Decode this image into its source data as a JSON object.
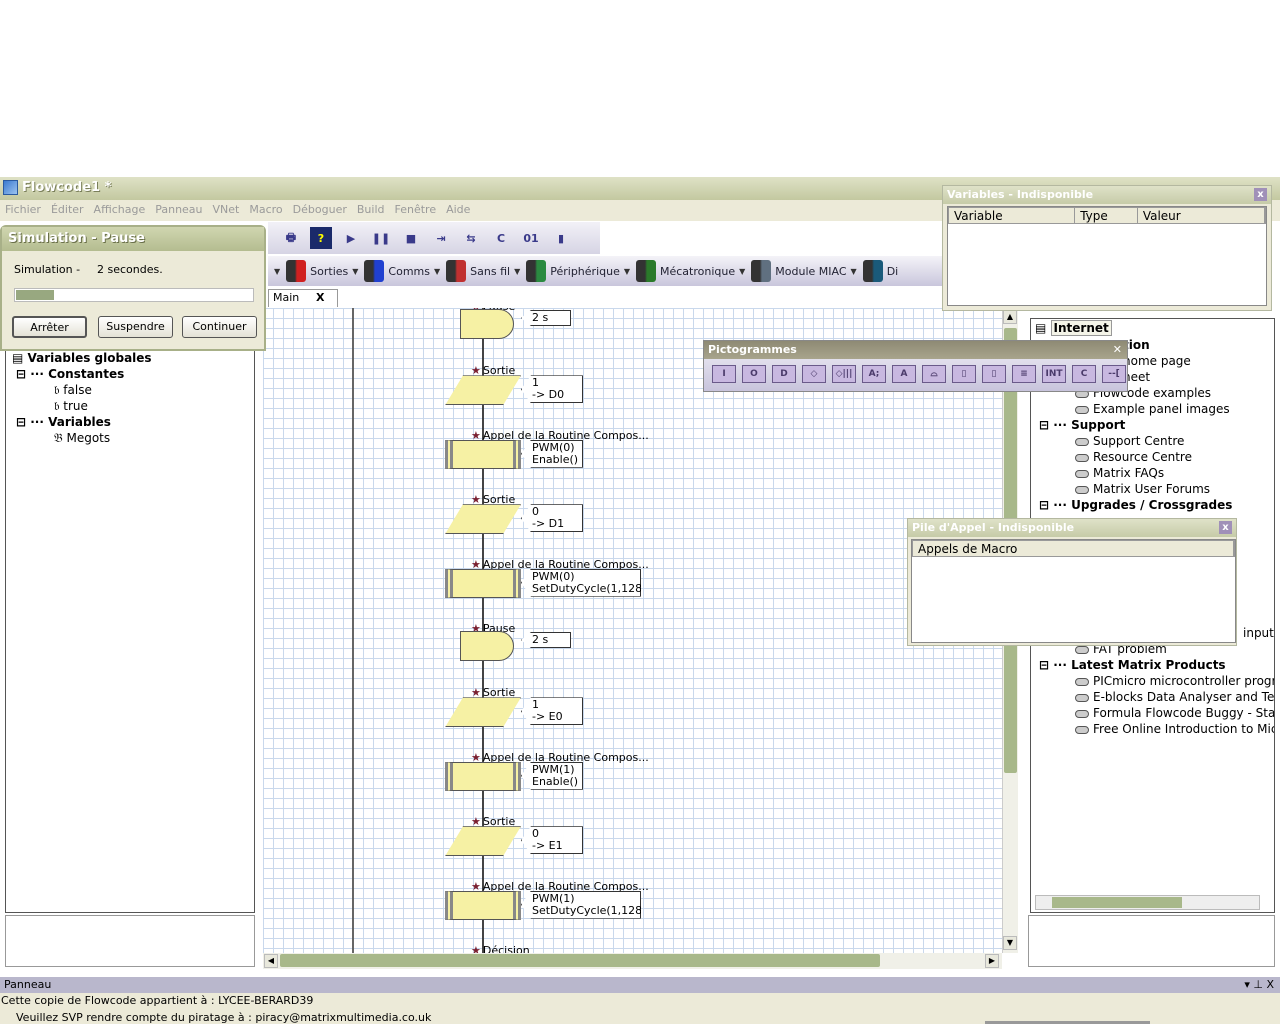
{
  "window": {
    "title": "Flowcode1 *"
  },
  "menu": [
    "Fichier",
    "Éditer",
    "Affichage",
    "Panneau",
    "VNet",
    "Macro",
    "Déboguer",
    "Build",
    "Fenêtre",
    "Aide"
  ],
  "toolbar1": [
    {
      "icon": "print-icon",
      "glyph": "🖶"
    },
    {
      "icon": "help-icon",
      "glyph": "?"
    },
    {
      "icon": "play-icon",
      "glyph": "▶"
    },
    {
      "icon": "pause-icon",
      "glyph": "❚❚"
    },
    {
      "icon": "stop-icon",
      "glyph": "■"
    },
    {
      "icon": "step-into-icon",
      "glyph": "⇥"
    },
    {
      "icon": "step-over-icon",
      "glyph": "⇆"
    },
    {
      "icon": "compile-c-icon",
      "glyph": "C"
    },
    {
      "icon": "compile-hex-icon",
      "glyph": "01"
    },
    {
      "icon": "chip-icon",
      "glyph": "▮"
    }
  ],
  "toolbar2": [
    {
      "label": "Sorties",
      "icon": "outputs-icon",
      "color": "#d02020"
    },
    {
      "label": "Comms",
      "icon": "comms-icon",
      "color": "#2040d0"
    },
    {
      "label": "Sans fil",
      "icon": "wireless-icon",
      "color": "#c03030"
    },
    {
      "label": "Périphérique",
      "icon": "peripheral-icon",
      "color": "#2a8a40"
    },
    {
      "label": "Mécatronique",
      "icon": "mechatronics-icon",
      "color": "#2a7a2a"
    },
    {
      "label": "Module MIAC",
      "icon": "miac-icon",
      "color": "#607080"
    },
    {
      "label": "Di",
      "icon": "tools-icon",
      "color": "#1a5a7a"
    }
  ],
  "tab": {
    "label": "Main",
    "close": "X"
  },
  "flowchart": [
    {
      "label": "Pause",
      "type": "delay",
      "lines": [
        "2 s"
      ]
    },
    {
      "label": "Sortie",
      "type": "output",
      "lines": [
        "1",
        "-> D0"
      ]
    },
    {
      "label": "Appel de la Routine Compos...",
      "type": "call",
      "lines": [
        "PWM(0)",
        "Enable()"
      ]
    },
    {
      "label": "Sortie",
      "type": "output",
      "lines": [
        "0",
        "-> D1"
      ]
    },
    {
      "label": "Appel de la Routine Compos...",
      "type": "call",
      "lines": [
        "PWM(0)",
        "SetDutyCycle(1,128)"
      ]
    },
    {
      "label": "Pause",
      "type": "delay",
      "lines": [
        "2 s"
      ]
    },
    {
      "label": "Sortie",
      "type": "output",
      "lines": [
        "1",
        "-> E0"
      ]
    },
    {
      "label": "Appel de la Routine Compos...",
      "type": "call",
      "lines": [
        "PWM(1)",
        "Enable()"
      ]
    },
    {
      "label": "Sortie",
      "type": "output",
      "lines": [
        "0",
        "-> E1"
      ]
    },
    {
      "label": "Appel de la Routine Compos...",
      "type": "call",
      "lines": [
        "PWM(1)",
        "SetDutyCycle(1,128)"
      ]
    },
    {
      "label": "Décision",
      "type": "decision",
      "lines": []
    }
  ],
  "simulation": {
    "title": "Simulation - Pause",
    "label": "Simulation -",
    "value": "2 secondes.",
    "progress_percent": 16,
    "buttons": {
      "stop": "Arrêter",
      "suspend": "Suspendre",
      "continue": "Continuer"
    }
  },
  "variables_tree": {
    "root": "Variables globales",
    "constants": {
      "label": "Constantes",
      "items": [
        "false",
        "true"
      ]
    },
    "variables": {
      "label": "Variables",
      "items": [
        "Megots"
      ]
    }
  },
  "variables_window": {
    "title": "Variables - Indisponible",
    "columns": [
      "Variable",
      "Type",
      "Valeur"
    ]
  },
  "pictogrammes": {
    "title": "Pictogrammes",
    "items": [
      "I",
      "O",
      "D",
      "◇",
      "◇|||",
      "A;",
      "A",
      "⌓",
      "▯",
      "▯",
      "≡",
      "INT",
      "C",
      "--["
    ]
  },
  "call_stack": {
    "title": "Pile d'Appel - Indisponible",
    "column": "Appels de Macro"
  },
  "internet_tree": {
    "root": "Internet",
    "visible_fragments": {
      "section1": "tion",
      "item1": "home page",
      "item2": "heet",
      "item3": "input",
      "item4": "FAT problem"
    },
    "items_top": [
      "Flowcode examples",
      "Example panel images"
    ],
    "support": {
      "label": "Support",
      "items": [
        "Support Centre",
        "Resource Centre",
        "Matrix FAQs",
        "Matrix User Forums"
      ]
    },
    "upgrades": {
      "label": "Upgrades / Crossgrades"
    },
    "latest": {
      "label": "Latest Matrix Products",
      "items": [
        "PICmicro microcontroller progran",
        "E-blocks Data Analyser and Test",
        "Formula Flowcode Buggy - Start",
        "Free Online Introduction to Micr"
      ]
    }
  },
  "panneau": {
    "title": "Panneau",
    "controls": "▾ ⊥ X"
  },
  "status": {
    "line1": "Cette copie de Flowcode appartient à : LYCEE-BERARD39",
    "line2": "Veuillez SVP rendre compte du piratage à : piracy@matrixmultimedia.co.uk"
  }
}
